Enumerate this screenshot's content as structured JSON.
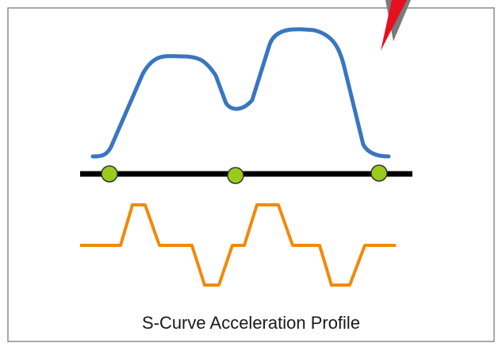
{
  "caption": "S-Curve Acceleration Profile",
  "colors": {
    "frame_border": "#8c8c8c",
    "velocity_curve": "#3a76c0",
    "acceleration_curve": "#f08a0a",
    "axis_line": "#000000",
    "marker_fill": "#9acb1c",
    "marker_stroke": "#333333",
    "pointer_red": "#e60f1e",
    "pointer_grey": "#7a7a7a"
  },
  "icons": {
    "pointer": "red-pointer-icon",
    "marker": "green-circle-marker"
  }
}
